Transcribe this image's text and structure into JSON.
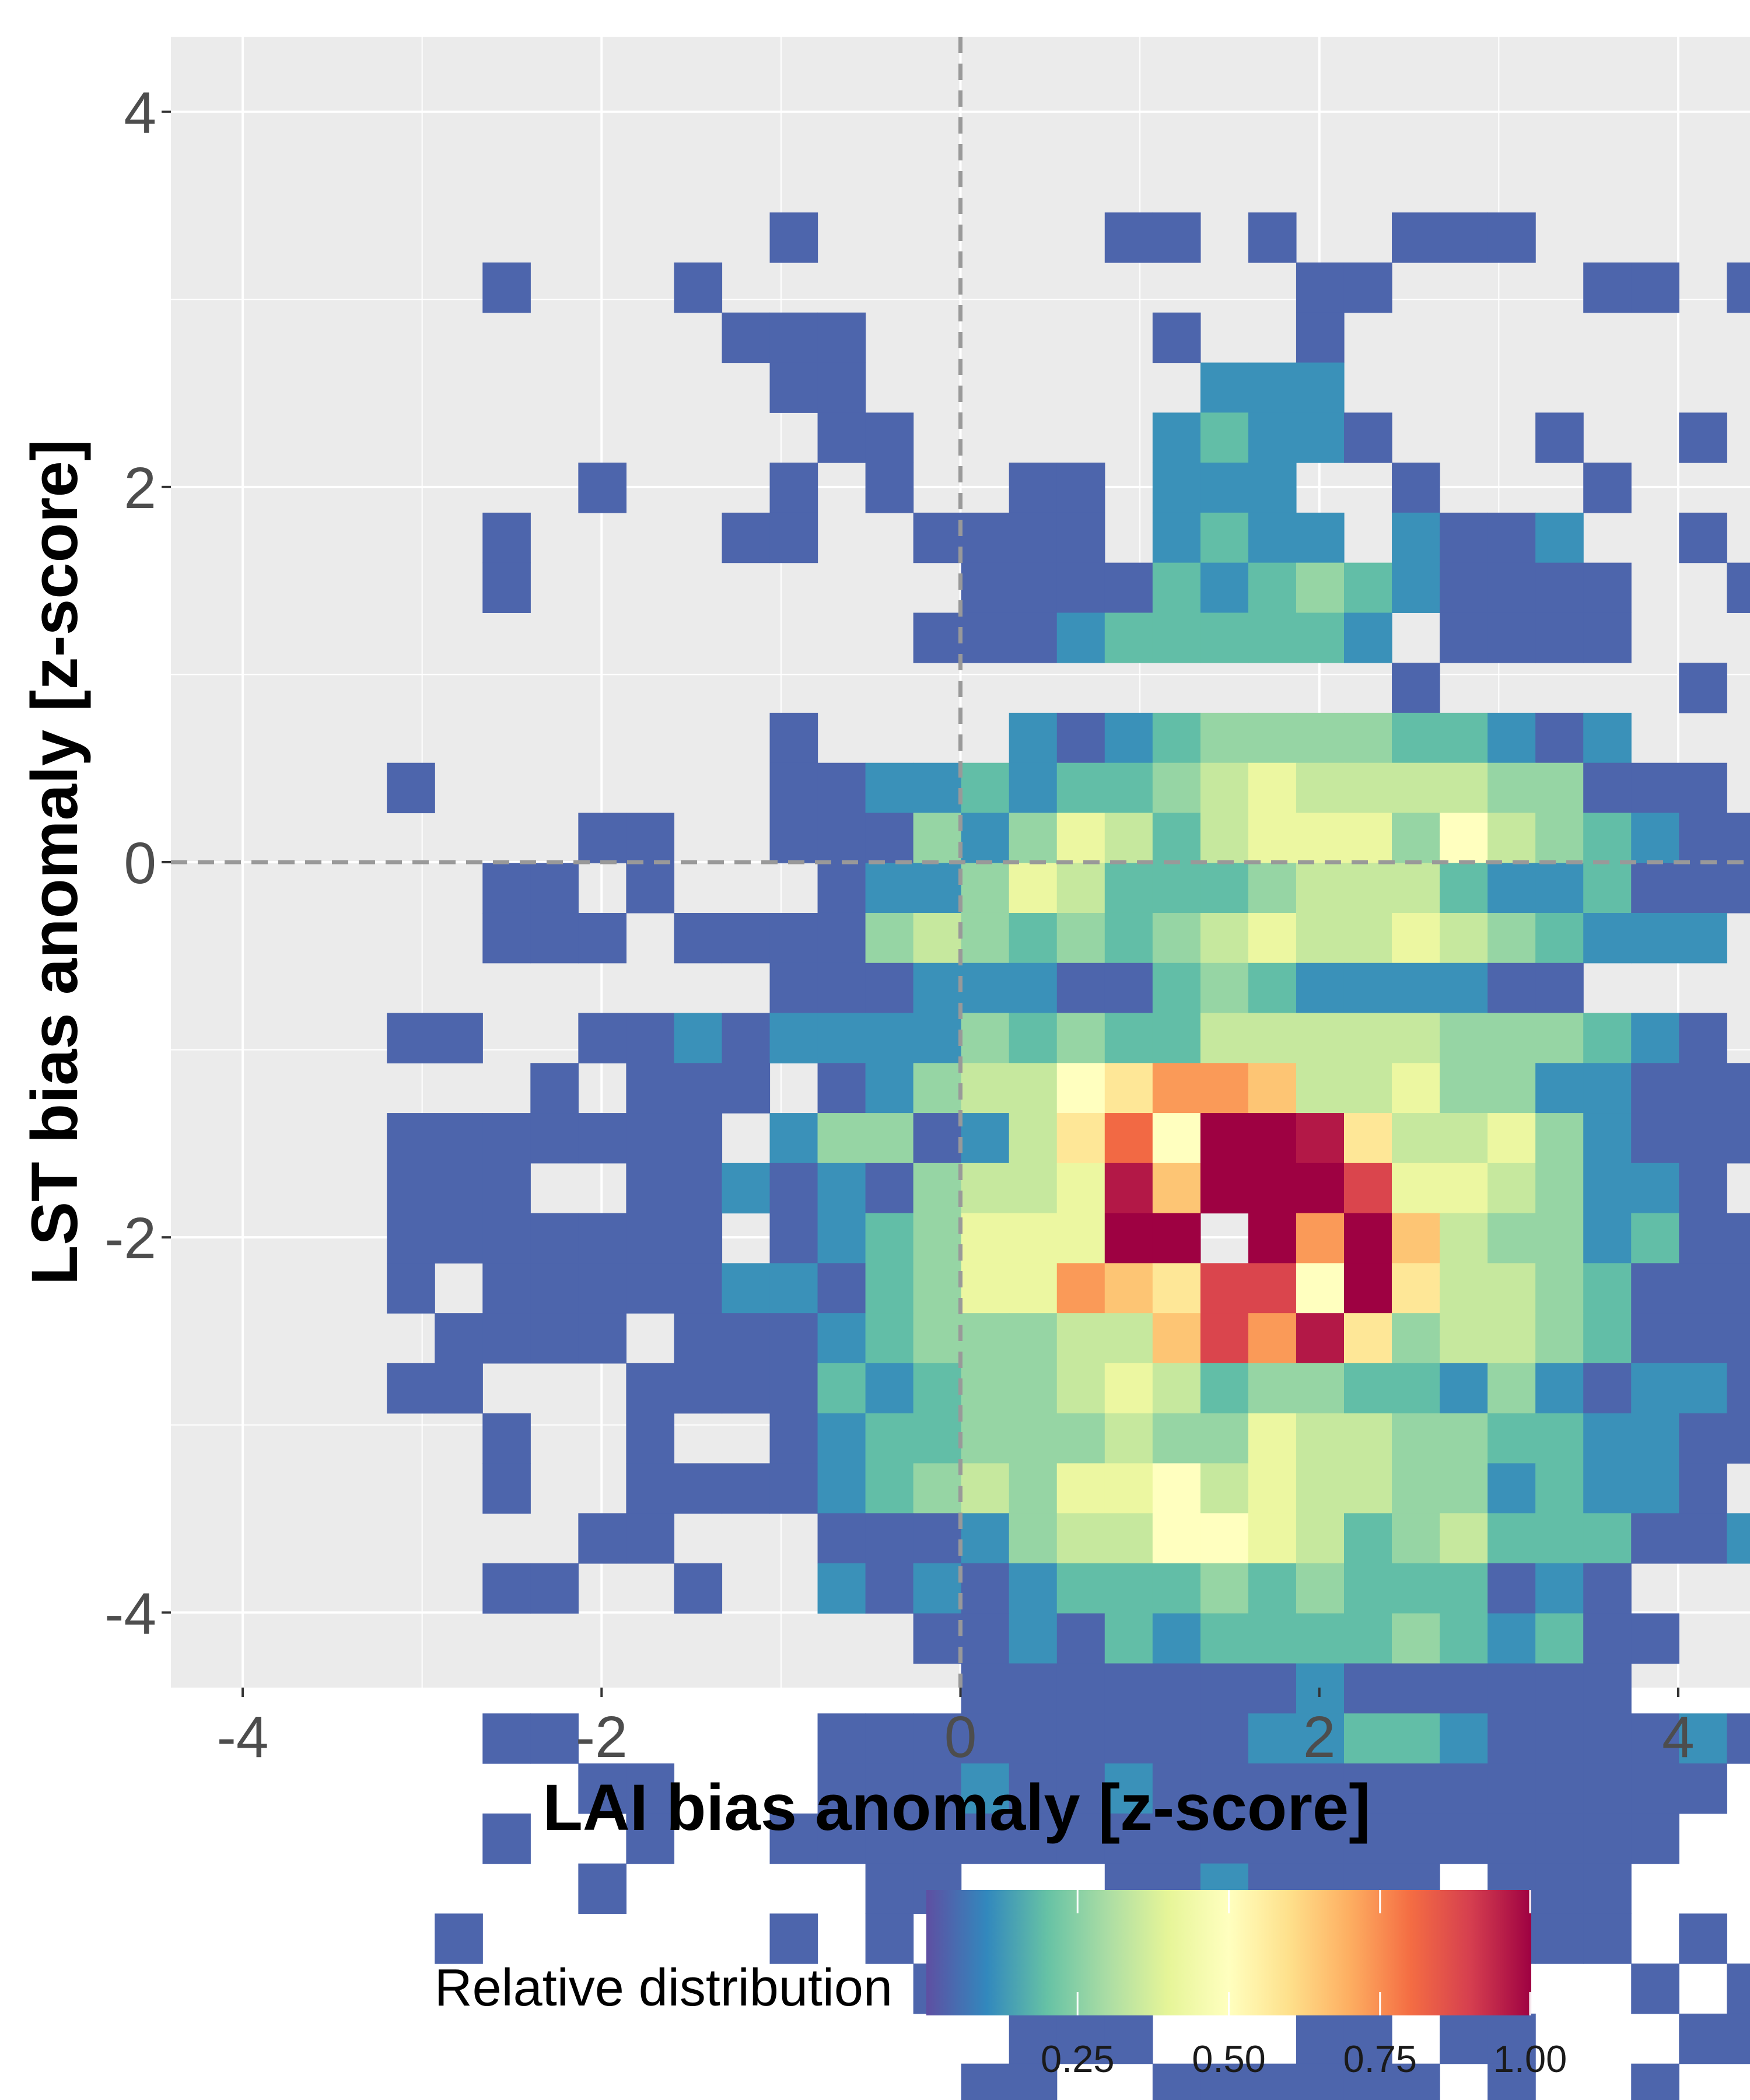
{
  "chart_data": {
    "type": "heatmap",
    "title": "",
    "xlabel": "LAI bias anomaly [z-score]",
    "ylabel": "LST bias anomaly [z-score]",
    "xlim": [
      -4.4,
      4.4
    ],
    "ylim": [
      -4.4,
      4.4
    ],
    "x_ticks": [
      -4,
      -2,
      0,
      2,
      4
    ],
    "y_ticks": [
      -4,
      -2,
      0,
      2,
      4
    ],
    "x_tick_labels": [
      "-4",
      "-2",
      "0",
      "2",
      "4"
    ],
    "y_tick_labels": [
      "-4",
      "-2",
      "0",
      "2",
      "4"
    ],
    "grid": true,
    "reference_lines": [
      {
        "axis": "x",
        "value": 0,
        "style": "dashed"
      },
      {
        "axis": "y",
        "value": 0,
        "style": "dashed"
      }
    ],
    "bins": {
      "x_start": -3.73,
      "x_width": 0.2667,
      "y_top": 3.73,
      "y_height": 0.2667,
      "value_scale": "Q -> (Q - 0.5) / 13 ; '.' = empty bin",
      "rows": [
        "................................",
        "..........0......00.0..000......",
        "....0...0............00....00.0.",
        ".........000......0..0..........",
        "..........00.......111..........",
        "...........00.....12110...0..0..",
        "......0...0.0..00.111..0...0....",
        "....0....00..0000.1211.1001..0..",
        "....0.........00002123210000..0.",
        ".............0001222221.0000....",
        ".......................0.....0..",
        "..........0....1012333322101....",
        "..0.......00112122345444433000..",
        "......00..000313542455536432100.",
        "....00.0...011354222344421120000",
        "....000.0000343232345445432111..",
        "..........00011100232111100.....",
        "..00..001011113232244444333210..",
        ".....0.000.01344679984453311000.",
        "..0000000.1330147A6FEC7445310000",
        "..000..0010103445C8GFEB5543110.0",
        "..0000000.0123555DD.F9E843312000",
        "..0.000001102355987BB6D74432000.",
        "...0000.00012333448B9C7344320000",
        "..00...0000212334542332213101100",
        "....0..0..0122333433544332211000",
        "....0..00001234355645443312110..",
        "......00...00013446654234222001.",
        "....00..0..10101222323222010....",
        ".............0010212222321200...",
        "..............00000001000000....",
        "....00.....00000000011221000010.",
        "......00...0001001000000000000..",
        "....0..0..0000000000000000000...",
        "......0.....00...0010000.000....",
        "...0......0.0.000..10.0..000.0..",
        ".............00.00.0000.0...0.0.",
        "...............000...00.00...00.",
        "..............00..000000.0..0...",
        "..............0000.0000.00..00.."
      ]
    },
    "colorbar": {
      "title": "Relative distribution",
      "range": [
        0,
        1
      ],
      "ticks": [
        0.25,
        0.5,
        0.75,
        1.0
      ],
      "tick_labels": [
        "0.25",
        "0.50",
        "0.75",
        "1.00"
      ],
      "palette": [
        "#5e4fa2",
        "#3288bd",
        "#66c2a5",
        "#abdda4",
        "#e6f598",
        "#ffffbf",
        "#fee08b",
        "#fdae61",
        "#f46d43",
        "#d53e4f",
        "#9e0142"
      ]
    }
  }
}
